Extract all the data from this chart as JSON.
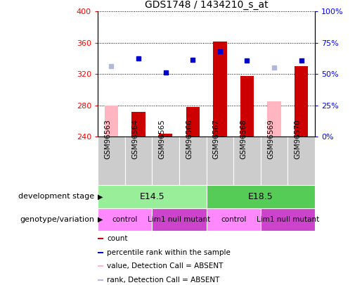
{
  "title": "GDS1748 / 1434210_s_at",
  "samples": [
    "GSM96563",
    "GSM96564",
    "GSM96565",
    "GSM96566",
    "GSM96567",
    "GSM96568",
    "GSM96569",
    "GSM96570"
  ],
  "count_values": [
    null,
    272,
    244,
    278,
    362,
    318,
    null,
    330
  ],
  "count_absent_values": [
    280,
    null,
    null,
    null,
    null,
    null,
    285,
    null
  ],
  "rank_values": [
    null,
    340,
    322,
    338,
    349,
    337,
    null,
    337
  ],
  "rank_absent_values": [
    330,
    null,
    null,
    null,
    null,
    null,
    328,
    null
  ],
  "ylim": [
    240,
    400
  ],
  "yticks": [
    240,
    280,
    320,
    360,
    400
  ],
  "y2lim": [
    0,
    100
  ],
  "y2ticks": [
    0,
    25,
    50,
    75,
    100
  ],
  "y2ticklabels": [
    "0%",
    "25%",
    "50%",
    "75%",
    "100%"
  ],
  "bar_color": "#cc0000",
  "bar_absent_color": "#ffb6c1",
  "rank_color": "#0000cc",
  "rank_absent_color": "#b0b8dd",
  "development_stage_groups": [
    {
      "label": "E14.5",
      "start": 0,
      "end": 3,
      "color": "#99ee99"
    },
    {
      "label": "E18.5",
      "start": 4,
      "end": 7,
      "color": "#55cc55"
    }
  ],
  "genotype_groups": [
    {
      "label": "control",
      "start": 0,
      "end": 1,
      "color": "#ff88ff"
    },
    {
      "label": "Lim1 null mutant",
      "start": 2,
      "end": 3,
      "color": "#cc44cc"
    },
    {
      "label": "control",
      "start": 4,
      "end": 5,
      "color": "#ff88ff"
    },
    {
      "label": "Lim1 null mutant",
      "start": 6,
      "end": 7,
      "color": "#cc44cc"
    }
  ],
  "legend_items": [
    {
      "label": "count",
      "color": "#cc0000"
    },
    {
      "label": "percentile rank within the sample",
      "color": "#0000cc"
    },
    {
      "label": "value, Detection Call = ABSENT",
      "color": "#ffb6c1"
    },
    {
      "label": "rank, Detection Call = ABSENT",
      "color": "#b0b8dd"
    }
  ],
  "sample_bg_color": "#cccccc",
  "dev_label": "development stage",
  "gen_label": "genotype/variation"
}
